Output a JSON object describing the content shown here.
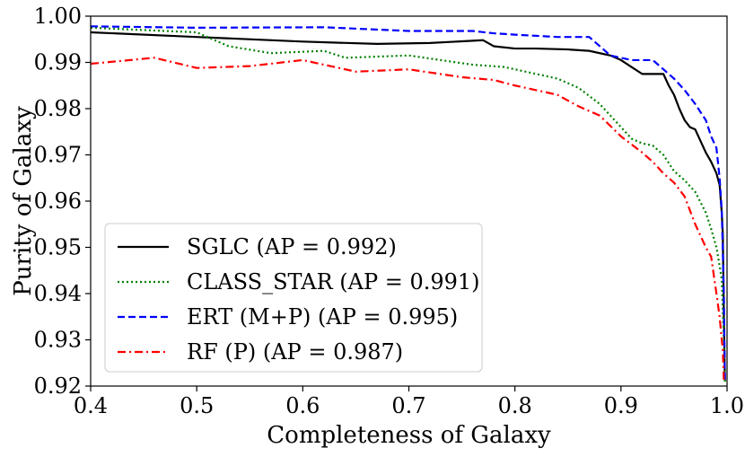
{
  "chart_data": {
    "type": "line",
    "title": "",
    "xlabel": "Completeness of Galaxy",
    "ylabel": "Purity of Galaxy",
    "xlim": [
      0.4,
      1.0
    ],
    "ylim": [
      0.92,
      1.0
    ],
    "xticks": [
      {
        "value": 0.4,
        "label": "0.4"
      },
      {
        "value": 0.5,
        "label": "0.5"
      },
      {
        "value": 0.6,
        "label": "0.6"
      },
      {
        "value": 0.7,
        "label": "0.7"
      },
      {
        "value": 0.8,
        "label": "0.8"
      },
      {
        "value": 0.9,
        "label": "0.9"
      },
      {
        "value": 1.0,
        "label": "1.0"
      }
    ],
    "yticks": [
      {
        "value": 0.92,
        "label": "0.92"
      },
      {
        "value": 0.93,
        "label": "0.93"
      },
      {
        "value": 0.94,
        "label": "0.94"
      },
      {
        "value": 0.95,
        "label": "0.95"
      },
      {
        "value": 0.96,
        "label": "0.96"
      },
      {
        "value": 0.97,
        "label": "0.97"
      },
      {
        "value": 0.98,
        "label": "0.98"
      },
      {
        "value": 0.99,
        "label": "0.99"
      },
      {
        "value": 1.0,
        "label": "1.00"
      }
    ],
    "grid": false,
    "legend_position": "lower-left",
    "series": [
      {
        "name": "SGLC (AP = 0.992)",
        "color": "#000000",
        "style": "solid",
        "x": [
          0.4,
          0.5,
          0.6,
          0.67,
          0.72,
          0.77,
          0.78,
          0.8,
          0.82,
          0.85,
          0.87,
          0.89,
          0.9,
          0.91,
          0.92,
          0.93,
          0.94,
          0.945,
          0.95,
          0.955,
          0.96,
          0.965,
          0.97,
          0.975,
          0.98,
          0.985,
          0.99,
          0.993,
          0.995,
          0.996,
          0.997,
          0.998
        ],
        "y": [
          0.9965,
          0.9955,
          0.9945,
          0.994,
          0.9942,
          0.9948,
          0.9935,
          0.993,
          0.993,
          0.9928,
          0.9925,
          0.9915,
          0.9905,
          0.989,
          0.9875,
          0.9875,
          0.9875,
          0.985,
          0.983,
          0.98,
          0.9775,
          0.976,
          0.9755,
          0.973,
          0.9705,
          0.9685,
          0.966,
          0.9635,
          0.9575,
          0.953,
          0.935,
          0.921
        ]
      },
      {
        "name": "CLASS_STAR (AP = 0.991)",
        "color": "#008000",
        "style": "dotted",
        "x": [
          0.4,
          0.5,
          0.53,
          0.57,
          0.62,
          0.64,
          0.7,
          0.73,
          0.76,
          0.79,
          0.82,
          0.84,
          0.86,
          0.88,
          0.9,
          0.91,
          0.92,
          0.93,
          0.94,
          0.95,
          0.96,
          0.97,
          0.98,
          0.985,
          0.99,
          0.993,
          0.995,
          0.997,
          0.998
        ],
        "y": [
          0.9975,
          0.9965,
          0.9935,
          0.992,
          0.9925,
          0.991,
          0.9915,
          0.9905,
          0.9895,
          0.989,
          0.9875,
          0.9865,
          0.9845,
          0.981,
          0.976,
          0.9735,
          0.9725,
          0.972,
          0.97,
          0.9665,
          0.9645,
          0.962,
          0.9575,
          0.954,
          0.95,
          0.946,
          0.943,
          0.93,
          0.921
        ]
      },
      {
        "name": "ERT (M+P) (AP = 0.995)",
        "color": "#0000ff",
        "style": "dashed",
        "x": [
          0.4,
          0.5,
          0.62,
          0.7,
          0.76,
          0.78,
          0.8,
          0.84,
          0.87,
          0.88,
          0.89,
          0.9,
          0.91,
          0.93,
          0.94,
          0.95,
          0.96,
          0.97,
          0.98,
          0.985,
          0.99,
          0.993,
          0.995,
          0.997,
          0.998
        ],
        "y": [
          0.9978,
          0.9975,
          0.9976,
          0.9968,
          0.9968,
          0.9963,
          0.996,
          0.9955,
          0.9955,
          0.9935,
          0.9915,
          0.991,
          0.9905,
          0.9905,
          0.9885,
          0.9865,
          0.984,
          0.981,
          0.9775,
          0.974,
          0.9715,
          0.965,
          0.958,
          0.94,
          0.921
        ]
      },
      {
        "name": "RF (P) (AP = 0.987)",
        "color": "#ff0000",
        "style": "dashdot",
        "x": [
          0.4,
          0.46,
          0.5,
          0.55,
          0.6,
          0.65,
          0.7,
          0.75,
          0.78,
          0.8,
          0.82,
          0.84,
          0.86,
          0.88,
          0.9,
          0.92,
          0.93,
          0.94,
          0.95,
          0.96,
          0.97,
          0.98,
          0.985,
          0.99,
          0.993,
          0.995,
          0.996,
          0.997
        ],
        "y": [
          0.9897,
          0.991,
          0.9888,
          0.9892,
          0.9905,
          0.988,
          0.9885,
          0.9868,
          0.9862,
          0.985,
          0.984,
          0.983,
          0.9805,
          0.9785,
          0.974,
          0.9705,
          0.9685,
          0.966,
          0.964,
          0.961,
          0.955,
          0.95,
          0.948,
          0.94,
          0.935,
          0.93,
          0.928,
          0.921
        ]
      }
    ]
  }
}
